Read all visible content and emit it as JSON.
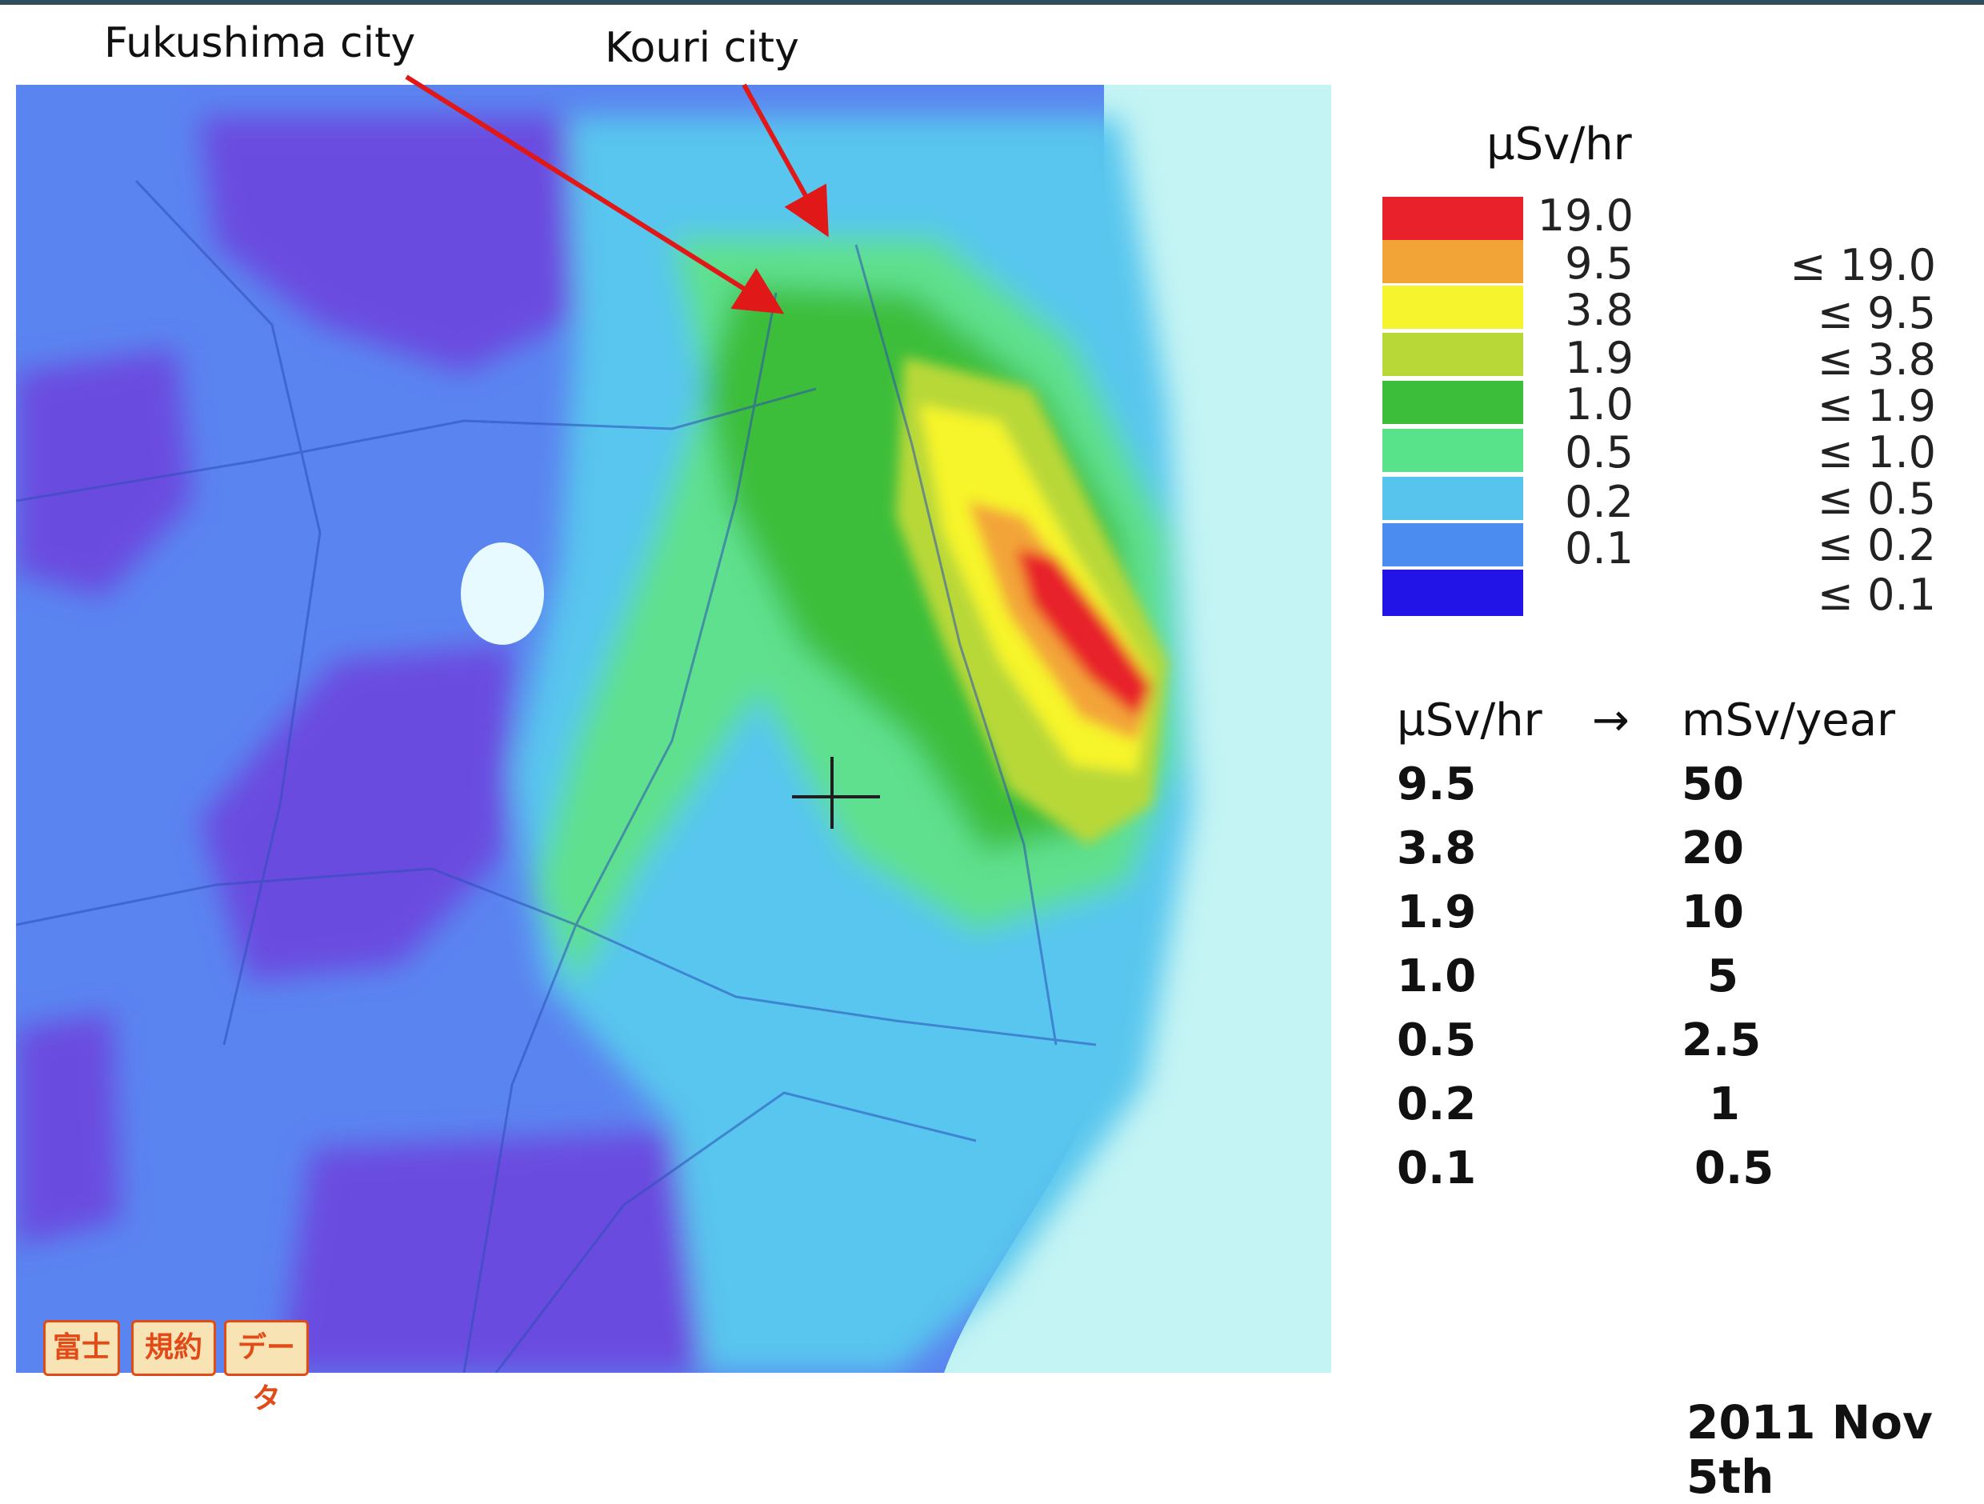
{
  "labels": {
    "city_1": "Fukushima city",
    "city_2": "Kouri city"
  },
  "legend": {
    "unit": "µSv/hr",
    "bands": [
      {
        "color": "#e8212b",
        "threshold": "19.0",
        "range": "≤ 19.0"
      },
      {
        "color": "#f3a437",
        "threshold": "9.5",
        "range": "≤ 9.5"
      },
      {
        "color": "#f6f42c",
        "threshold": "3.8",
        "range": "≤ 3.8"
      },
      {
        "color": "#b8d838",
        "threshold": "1.9",
        "range": "≤ 1.9"
      },
      {
        "color": "#3cbe3a",
        "threshold": "1.0",
        "range": "≤ 1.0"
      },
      {
        "color": "#58e28a",
        "threshold": "0.5",
        "range": "≤ 0.5"
      },
      {
        "color": "#56c4ec",
        "threshold": "0.2",
        "range": "≤ 0.2"
      },
      {
        "color": "#4a8cf0",
        "threshold": "0.1",
        "range": "≤ 0.1"
      },
      {
        "color": "#2214e6",
        "threshold": "",
        "range": ""
      }
    ]
  },
  "conversion": {
    "header_from": "µSv/hr",
    "arrow": "→",
    "header_to": "mSv/year",
    "rows": [
      {
        "from": "9.5",
        "to": "50"
      },
      {
        "from": "3.8",
        "to": "20"
      },
      {
        "from": "1.9",
        "to": "10"
      },
      {
        "from": "1.0",
        "to": "5"
      },
      {
        "from": "0.5",
        "to": "2.5"
      },
      {
        "from": "0.2",
        "to": "1"
      },
      {
        "from": "0.1",
        "to": "0.5"
      }
    ]
  },
  "date": "2011 Nov 5th",
  "map_badges": [
    "富士",
    "規約",
    "データ"
  ],
  "colors": {
    "sea": "#c4f4f4",
    "arrow": "#e01818",
    "background_low": "#5a84f0",
    "purple": "#6b4ce0"
  }
}
